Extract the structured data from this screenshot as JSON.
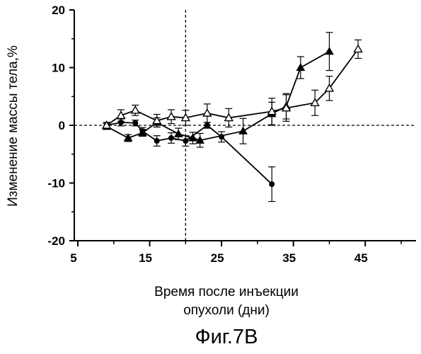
{
  "chart_data": {
    "type": "scatter",
    "xlabel_line1": "Время после инъекции",
    "xlabel_line2": "опухоли (дни)",
    "ylabel": "Изменение массы тела,%",
    "figure_caption": "Фиг.7В",
    "xlim": [
      5,
      50
    ],
    "ylim": [
      -20,
      20
    ],
    "xticks": [
      "5",
      "15",
      "25",
      "35",
      "45"
    ],
    "xtick_values": [
      5,
      15,
      25,
      35,
      45
    ],
    "yticks": [
      "20",
      "10",
      "0",
      "-10",
      "-20"
    ],
    "ytick_values": [
      20,
      10,
      0,
      -10,
      -20
    ],
    "reference_lines": {
      "x": 20,
      "y": 0
    },
    "series": [
      {
        "marker": "filled-circle",
        "x": [
          9,
          11,
          13,
          14,
          16,
          18,
          20,
          23,
          25,
          32
        ],
        "y": [
          0,
          0.5,
          0.4,
          -1.0,
          -2.7,
          -2.2,
          -2.7,
          0.0,
          -2.0,
          -10.2
        ],
        "err": [
          0.5,
          0.6,
          0.5,
          0.6,
          0.9,
          0.9,
          0.9,
          0.5,
          0.9,
          3.0
        ]
      },
      {
        "marker": "filled-triangle",
        "x": [
          9,
          12,
          14,
          16,
          19,
          21,
          22,
          28,
          32,
          34,
          36,
          40
        ],
        "y": [
          -0.2,
          -2.2,
          -1.3,
          0.5,
          -1.5,
          -2.2,
          -2.6,
          -1.0,
          2.0,
          3.3,
          10.0,
          12.8
        ],
        "err": [
          0.5,
          0.6,
          0.6,
          0.8,
          1.0,
          1.0,
          1.2,
          2.2,
          2.0,
          2.2,
          1.9,
          3.3
        ]
      },
      {
        "marker": "open-triangle",
        "x": [
          9,
          11,
          13,
          16,
          18,
          20,
          23,
          26,
          32,
          34,
          38,
          40,
          44
        ],
        "y": [
          0,
          1.7,
          2.6,
          0.8,
          1.5,
          1.3,
          2.1,
          1.3,
          2.4,
          3.0,
          3.9,
          6.4,
          13.2
        ],
        "err": [
          0.5,
          1.0,
          0.9,
          1.1,
          1.2,
          1.3,
          1.6,
          1.6,
          2.3,
          2.3,
          2.2,
          2.1,
          1.6
        ]
      }
    ]
  }
}
